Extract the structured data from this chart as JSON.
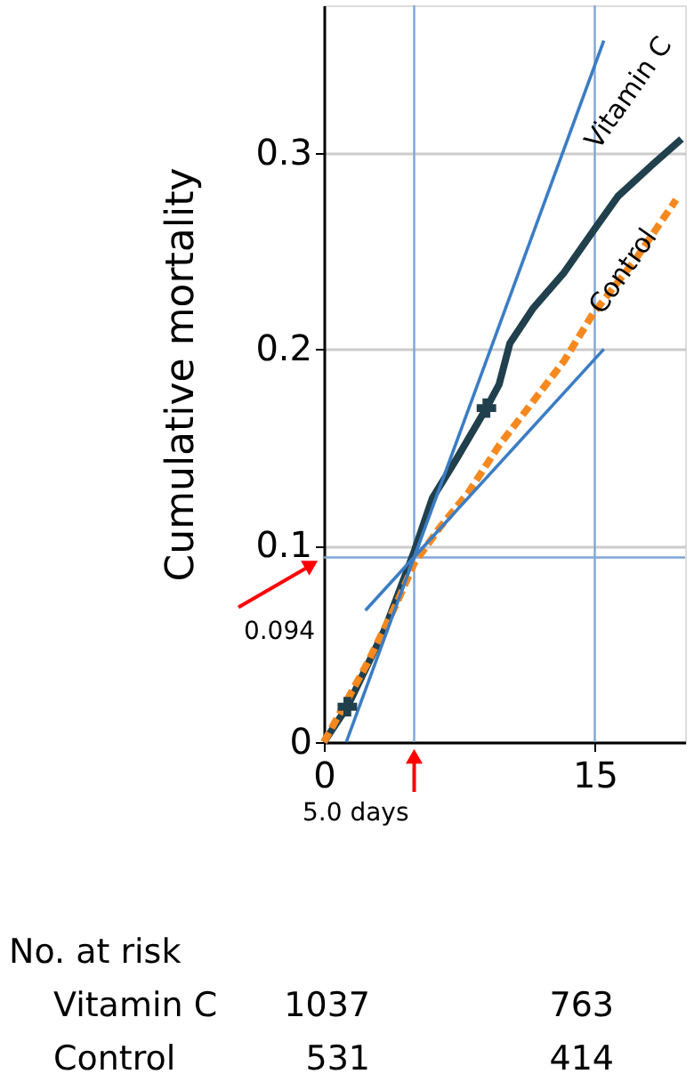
{
  "chart_data": {
    "type": "line",
    "ylabel": "Cumulative mortality",
    "xlim": [
      0,
      20
    ],
    "xticks": [
      0,
      15
    ],
    "ylim": [
      0,
      0.375
    ],
    "yticks": [
      0,
      0.1,
      0.2,
      0.3
    ],
    "grid": "y",
    "series": [
      {
        "name": "Vitamin C",
        "color": "#21404d",
        "line_style": "solid",
        "x": [
          0,
          1.3,
          3.4,
          5.0,
          6.0,
          7.4,
          9.0,
          9.7,
          10.3,
          11.6,
          13.3,
          14.9,
          16.3,
          18.2,
          19.8
        ],
        "values": [
          0,
          0.018,
          0.058,
          0.097,
          0.124,
          0.145,
          0.17,
          0.182,
          0.203,
          0.221,
          0.239,
          0.26,
          0.278,
          0.294,
          0.307
        ]
      },
      {
        "name": "Control",
        "color": "#f5891f",
        "line_style": "dashed",
        "x": [
          0,
          2.4,
          4.0,
          5.0,
          6.4,
          8.0,
          9.7,
          11.3,
          13.3,
          14.9,
          17.2,
          19.5
        ],
        "values": [
          0,
          0.04,
          0.07,
          0.091,
          0.109,
          0.127,
          0.151,
          0.17,
          0.194,
          0.218,
          0.245,
          0.276
        ]
      },
      {
        "color": "#3b7dc4",
        "line_style": "solid",
        "x": [
          1.24,
          15.5
        ],
        "values": [
          0,
          0.357
        ]
      },
      {
        "color": "#3b7dc4",
        "line_style": "solid",
        "x": [
          2.3,
          15.5
        ],
        "values": [
          0.067,
          0.2
        ]
      },
      {
        "color": "#21404d",
        "type": "scatter",
        "marker": "cross",
        "x": [
          1.3,
          9.0
        ],
        "values": [
          0.018,
          0.17
        ]
      }
    ],
    "ref_lines": [
      {
        "axis": "x",
        "value": 5.0,
        "label": "5.0 days",
        "color": "#7fa6d6"
      },
      {
        "axis": "y",
        "value": 0.094,
        "label": "0.094",
        "color": "#7fa6d6"
      },
      {
        "axis": "x",
        "value": 15,
        "color": "#7fa6d6"
      }
    ],
    "annotations": [
      "No. at risk",
      "Vitamin C",
      "1037",
      "763",
      "Control",
      "531",
      "414"
    ]
  }
}
